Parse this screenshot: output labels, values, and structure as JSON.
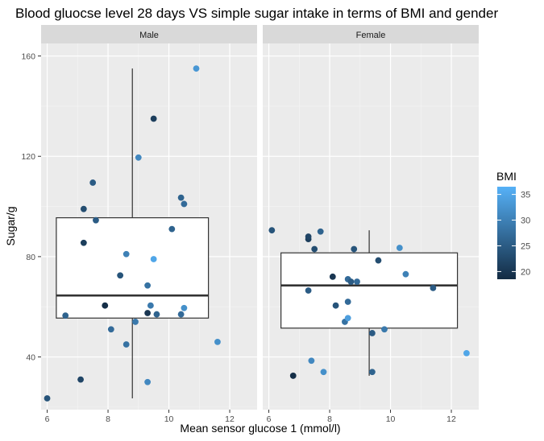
{
  "chart_data": {
    "type": "scatter",
    "title": "Blood gluocse level 28 days VS simple sugar intake in terms of BMI and gender",
    "xlabel": "Mean sensor glucose 1 (mmol/l)",
    "ylabel": "Sugar/g",
    "xlim": [
      5.8,
      12.9
    ],
    "ylim": [
      19,
      165
    ],
    "xticks": [
      6,
      8,
      10,
      12
    ],
    "yticks": [
      40,
      80,
      120,
      160
    ],
    "grid": true,
    "legend": {
      "title": "BMI",
      "placement": "right",
      "ticks": [
        20,
        25,
        30,
        35
      ],
      "range": [
        18.5,
        36.5
      ],
      "color_low": "#132B43",
      "color_high": "#56B1F7"
    },
    "facets": [
      {
        "name": "Male",
        "box": {
          "x_left": 6.3,
          "x_right": 11.3,
          "x_center": 8.8,
          "q1": 55.5,
          "median": 64.5,
          "q3": 95.5,
          "whisker_low": 23.5,
          "whisker_high": 155
        },
        "points": [
          {
            "x": 6.0,
            "y": 23.5,
            "bmi": 24
          },
          {
            "x": 6.6,
            "y": 56.5,
            "bmi": 26
          },
          {
            "x": 7.1,
            "y": 31,
            "bmi": 22
          },
          {
            "x": 7.2,
            "y": 99,
            "bmi": 23
          },
          {
            "x": 7.2,
            "y": 85.5,
            "bmi": 21
          },
          {
            "x": 7.5,
            "y": 109.5,
            "bmi": 25
          },
          {
            "x": 7.6,
            "y": 94.5,
            "bmi": 25
          },
          {
            "x": 7.9,
            "y": 60.5,
            "bmi": 19
          },
          {
            "x": 8.1,
            "y": 51,
            "bmi": 27
          },
          {
            "x": 8.4,
            "y": 72.5,
            "bmi": 24
          },
          {
            "x": 8.6,
            "y": 81,
            "bmi": 30
          },
          {
            "x": 8.6,
            "y": 45,
            "bmi": 28
          },
          {
            "x": 8.9,
            "y": 54,
            "bmi": 29
          },
          {
            "x": 9.0,
            "y": 119.5,
            "bmi": 31
          },
          {
            "x": 9.3,
            "y": 57.5,
            "bmi": 20
          },
          {
            "x": 9.3,
            "y": 68.5,
            "bmi": 28
          },
          {
            "x": 9.3,
            "y": 30,
            "bmi": 31
          },
          {
            "x": 9.4,
            "y": 60.5,
            "bmi": 29
          },
          {
            "x": 9.5,
            "y": 135,
            "bmi": 21
          },
          {
            "x": 9.5,
            "y": 79,
            "bmi": 35
          },
          {
            "x": 9.6,
            "y": 57,
            "bmi": 26
          },
          {
            "x": 10.1,
            "y": 91,
            "bmi": 26
          },
          {
            "x": 10.4,
            "y": 103.5,
            "bmi": 26
          },
          {
            "x": 10.4,
            "y": 57,
            "bmi": 27
          },
          {
            "x": 10.5,
            "y": 101,
            "bmi": 27
          },
          {
            "x": 10.5,
            "y": 59.5,
            "bmi": 32
          },
          {
            "x": 10.9,
            "y": 155,
            "bmi": 33
          },
          {
            "x": 11.6,
            "y": 46,
            "bmi": 32
          }
        ]
      },
      {
        "name": "Female",
        "box": {
          "x_left": 6.4,
          "x_right": 12.2,
          "x_center": 9.3,
          "q1": 51.5,
          "median": 68.5,
          "q3": 81.5,
          "whisker_low": 32.5,
          "whisker_high": 90.5
        },
        "points": [
          {
            "x": 6.1,
            "y": 90.5,
            "bmi": 24
          },
          {
            "x": 6.8,
            "y": 32.5,
            "bmi": 19
          },
          {
            "x": 7.3,
            "y": 87,
            "bmi": 21
          },
          {
            "x": 7.3,
            "y": 88,
            "bmi": 22
          },
          {
            "x": 7.3,
            "y": 66.5,
            "bmi": 25
          },
          {
            "x": 7.4,
            "y": 38.5,
            "bmi": 31
          },
          {
            "x": 7.5,
            "y": 83,
            "bmi": 23
          },
          {
            "x": 7.7,
            "y": 90,
            "bmi": 26
          },
          {
            "x": 7.8,
            "y": 34,
            "bmi": 32
          },
          {
            "x": 8.1,
            "y": 72,
            "bmi": 20
          },
          {
            "x": 8.2,
            "y": 60.5,
            "bmi": 24
          },
          {
            "x": 8.5,
            "y": 54,
            "bmi": 28
          },
          {
            "x": 8.6,
            "y": 55.5,
            "bmi": 34
          },
          {
            "x": 8.6,
            "y": 62,
            "bmi": 27
          },
          {
            "x": 8.6,
            "y": 71,
            "bmi": 27
          },
          {
            "x": 8.7,
            "y": 70,
            "bmi": 25
          },
          {
            "x": 8.8,
            "y": 83,
            "bmi": 24
          },
          {
            "x": 8.9,
            "y": 70,
            "bmi": 27
          },
          {
            "x": 9.4,
            "y": 34,
            "bmi": 26
          },
          {
            "x": 9.4,
            "y": 49.5,
            "bmi": 25
          },
          {
            "x": 9.6,
            "y": 78.5,
            "bmi": 23
          },
          {
            "x": 9.8,
            "y": 51,
            "bmi": 29
          },
          {
            "x": 10.3,
            "y": 83.5,
            "bmi": 32
          },
          {
            "x": 10.5,
            "y": 73,
            "bmi": 30
          },
          {
            "x": 11.4,
            "y": 67.5,
            "bmi": 25
          },
          {
            "x": 12.5,
            "y": 41.5,
            "bmi": 35
          }
        ]
      }
    ]
  }
}
